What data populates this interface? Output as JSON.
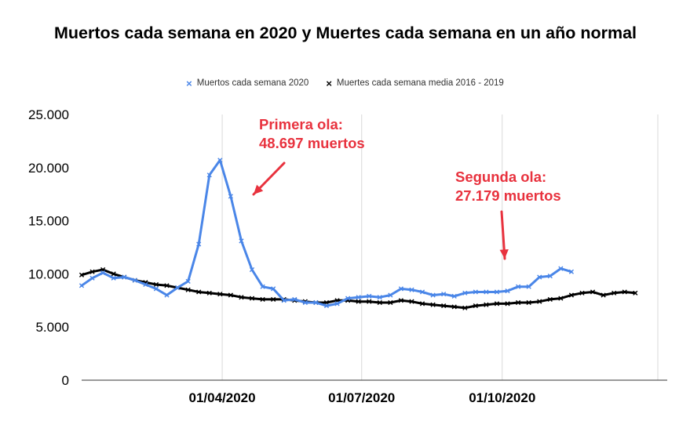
{
  "chart_data": {
    "type": "line",
    "title": "Muertos cada semana en 2020 y Muertes cada semana en un año normal",
    "xlabel": "",
    "ylabel": "",
    "ylim": [
      0,
      25000
    ],
    "y_ticks": [
      "0",
      "5.000",
      "10.000",
      "15.000",
      "20.000",
      "25.000"
    ],
    "y_tick_values": [
      0,
      5000,
      10000,
      15000,
      20000,
      25000
    ],
    "x_ticks": [
      "01/04/2020",
      "01/07/2020",
      "01/10/2020"
    ],
    "x_tick_weeks": [
      13.2,
      26.3,
      39.5
    ],
    "grid": "vertical",
    "legend_position": "top",
    "series": [
      {
        "name": "Muertos cada semana 2020",
        "color": "#4a86e8",
        "marker": "x",
        "weeks": [
          0,
          1,
          2,
          3,
          4,
          5,
          6,
          7,
          8,
          9,
          10,
          11,
          12,
          13,
          14,
          15,
          16,
          17,
          18,
          19,
          20,
          21,
          22,
          23,
          24,
          25,
          26,
          27,
          28,
          29,
          30,
          31,
          32,
          33,
          34,
          35,
          36,
          37,
          38,
          39,
          40,
          41,
          42,
          43,
          44,
          45,
          46
        ],
        "values": [
          8900,
          9600,
          10100,
          9600,
          9700,
          9400,
          9000,
          8600,
          8000,
          8700,
          9300,
          12800,
          19300,
          20700,
          17300,
          13100,
          10400,
          8800,
          8600,
          7500,
          7600,
          7300,
          7300,
          7000,
          7200,
          7700,
          7800,
          7900,
          7800,
          8000,
          8600,
          8500,
          8300,
          8000,
          8100,
          7900,
          8200,
          8300,
          8300,
          8300,
          8400,
          8800,
          8800,
          9700,
          9800,
          10500,
          10200
        ]
      },
      {
        "name": "Muertes cada semana media 2016 - 2019",
        "color": "#000000",
        "marker": "x",
        "weeks": [
          0,
          1,
          2,
          3,
          4,
          5,
          6,
          7,
          8,
          9,
          10,
          11,
          12,
          13,
          14,
          15,
          16,
          17,
          18,
          19,
          20,
          21,
          22,
          23,
          24,
          25,
          26,
          27,
          28,
          29,
          30,
          31,
          32,
          33,
          34,
          35,
          36,
          37,
          38,
          39,
          40,
          41,
          42,
          43,
          44,
          45,
          46,
          47,
          48,
          49,
          50,
          51,
          52
        ],
        "values": [
          9900,
          10200,
          10400,
          10000,
          9700,
          9400,
          9200,
          9000,
          8900,
          8700,
          8500,
          8300,
          8200,
          8100,
          8000,
          7800,
          7700,
          7600,
          7600,
          7600,
          7500,
          7400,
          7300,
          7300,
          7500,
          7500,
          7400,
          7400,
          7300,
          7300,
          7500,
          7400,
          7200,
          7100,
          7000,
          6900,
          6800,
          7000,
          7100,
          7200,
          7200,
          7300,
          7300,
          7400,
          7600,
          7700,
          8000,
          8200,
          8300,
          8000,
          8200,
          8300,
          8200
        ]
      }
    ],
    "annotations": [
      {
        "text": "Primera ola:\n48.697 muertos",
        "color": "#e8323e"
      },
      {
        "text": "Segunda ola:\n27.179 muertos",
        "color": "#e8323e"
      }
    ]
  }
}
